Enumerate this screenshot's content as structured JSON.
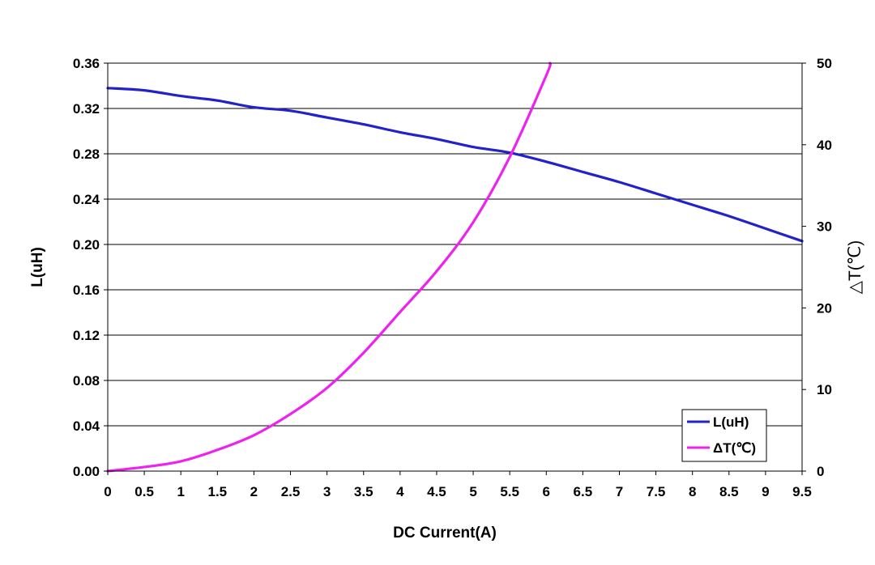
{
  "chart_data": {
    "type": "line",
    "title": "",
    "xlabel": "DC Current(A)",
    "ylabel": "L(uH)",
    "y2label": "△T(℃)",
    "xlim": [
      0,
      9.5
    ],
    "ylim": [
      0,
      0.36
    ],
    "y2lim": [
      0,
      50
    ],
    "x_ticks": [
      "0",
      "0.5",
      "1",
      "1.5",
      "2",
      "2.5",
      "3",
      "3.5",
      "4",
      "4.5",
      "5",
      "5.5",
      "6",
      "6.5",
      "7",
      "7.5",
      "8",
      "8.5",
      "9",
      "9.5"
    ],
    "y_ticks": [
      "0.00",
      "0.04",
      "0.08",
      "0.12",
      "0.16",
      "0.20",
      "0.24",
      "0.28",
      "0.32",
      "0.36"
    ],
    "y2_ticks": [
      "0",
      "10",
      "20",
      "30",
      "40",
      "50"
    ],
    "grid": "horizontal",
    "legend_position": "bottom-right",
    "series": [
      {
        "name": "L(uH)",
        "axis": "left",
        "color": "#2222cc",
        "x": [
          0,
          0.5,
          1,
          1.5,
          2,
          2.5,
          3,
          3.5,
          4,
          4.5,
          5,
          5.5,
          6,
          6.5,
          7,
          7.5,
          8,
          8.5,
          9,
          9.5
        ],
        "values": [
          0.338,
          0.336,
          0.331,
          0.327,
          0.321,
          0.318,
          0.312,
          0.306,
          0.299,
          0.293,
          0.286,
          0.281,
          0.273,
          0.264,
          0.255,
          0.245,
          0.235,
          0.225,
          0.214,
          0.203
        ]
      },
      {
        "name": "ΔT(℃)",
        "axis": "right",
        "color": "#ee22ee",
        "x": [
          0,
          0.5,
          1,
          1.5,
          2,
          2.5,
          3,
          3.5,
          4,
          4.5,
          5,
          5.5,
          6,
          6.05
        ],
        "values": [
          0,
          0.5,
          1.2,
          2.6,
          4.4,
          7.0,
          10.2,
          14.5,
          19.5,
          24.5,
          30.5,
          38.5,
          48.5,
          50
        ]
      }
    ]
  }
}
